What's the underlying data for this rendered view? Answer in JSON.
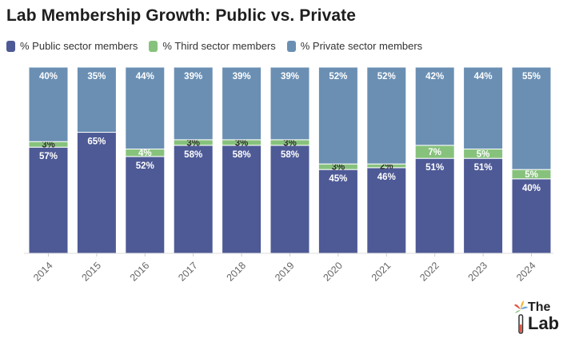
{
  "title": "Lab Membership Growth: Public vs. Private",
  "legend": [
    {
      "label": "% Public sector members",
      "color": "#4e5a96"
    },
    {
      "label": "% Third sector members",
      "color": "#87c27c"
    },
    {
      "label": "% Private sector members",
      "color": "#6a8fb3"
    }
  ],
  "logo": {
    "line1": "The",
    "line2": "Lab"
  },
  "chart_data": {
    "type": "bar",
    "stacked": true,
    "categories": [
      "2014",
      "2015",
      "2016",
      "2017",
      "2018",
      "2019",
      "2020",
      "2021",
      "2022",
      "2023",
      "2024"
    ],
    "series": [
      {
        "name": "% Public sector members",
        "color": "#4e5a96",
        "values": [
          57,
          65,
          52,
          58,
          58,
          58,
          45,
          46,
          51,
          51,
          40
        ]
      },
      {
        "name": "% Third sector members",
        "color": "#87c27c",
        "values": [
          3,
          0,
          4,
          3,
          3,
          3,
          3,
          2,
          7,
          5,
          5
        ]
      },
      {
        "name": "% Private sector members",
        "color": "#6a8fb3",
        "values": [
          40,
          35,
          44,
          39,
          39,
          39,
          52,
          52,
          42,
          44,
          55
        ]
      }
    ],
    "labels": [
      [
        "57%",
        "65%",
        "52%",
        "58%",
        "58%",
        "58%",
        "45%",
        "46%",
        "51%",
        "51%",
        "40%"
      ],
      [
        "3%",
        "",
        "4%",
        "3%",
        "3%",
        "3%",
        "3%",
        "2%",
        "7%",
        "5%",
        "5%"
      ],
      [
        "40%",
        "35%",
        "44%",
        "39%",
        "39%",
        "39%",
        "52%",
        "52%",
        "42%",
        "44%",
        "55%"
      ]
    ],
    "title": "Lab Membership Growth: Public vs. Private",
    "xlabel": "",
    "ylabel": "",
    "ylim": [
      0,
      100
    ],
    "grid": false,
    "legend_position": "top-left"
  }
}
